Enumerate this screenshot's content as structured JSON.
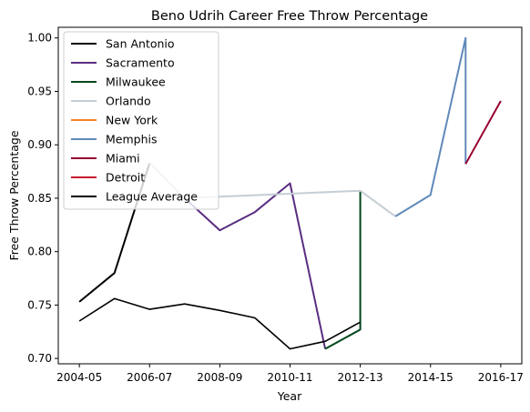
{
  "chart_data": {
    "type": "line",
    "title": "Beno Udrih Career Free Throw Percentage",
    "xlabel": "Year",
    "ylabel": "Free Throw Percentage",
    "x_ticks": [
      "2004-05",
      "2006-07",
      "2008-09",
      "2010-11",
      "2012-13",
      "2014-15",
      "2016-17"
    ],
    "y_ticks": [
      "0.70",
      "0.75",
      "0.80",
      "0.85",
      "0.90",
      "0.95",
      "1.00"
    ],
    "xlim": [
      "2004-05",
      "2016-17"
    ],
    "ylim": [
      0.695,
      1.01
    ],
    "legend_position": "top-left",
    "series": [
      {
        "name": "San Antonio",
        "color": "#000000",
        "points": [
          [
            "2004-05",
            0.753
          ],
          [
            "2005-06",
            0.78
          ],
          [
            "2006-07",
            0.883
          ]
        ]
      },
      {
        "name": "Sacramento",
        "color": "#5a2d81",
        "points": [
          [
            "2007-08",
            0.85
          ],
          [
            "2008-09",
            0.82
          ],
          [
            "2009-10",
            0.837
          ],
          [
            "2010-11",
            0.864
          ],
          [
            "2011-12",
            0.709
          ]
        ]
      },
      {
        "name": "Milwaukee",
        "color": "#00471b",
        "points": [
          [
            "2011-12",
            0.709
          ],
          [
            "2012-13",
            0.727
          ],
          [
            "2012-13",
            0.857
          ]
        ]
      },
      {
        "name": "Orlando",
        "color": "#c4ced4",
        "points": [
          [
            "2006-07",
            0.883
          ],
          [
            "2007-08",
            0.85
          ],
          [
            "2012-13",
            0.857
          ],
          [
            "2013-14",
            0.833
          ]
        ]
      },
      {
        "name": "New York",
        "color": "#f58426",
        "points": []
      },
      {
        "name": "Memphis",
        "color": "#6189b9",
        "points": [
          [
            "2013-14",
            0.833
          ],
          [
            "2014-15",
            0.853
          ],
          [
            "2015-16",
            1.0
          ],
          [
            "2015-16",
            0.882
          ]
        ]
      },
      {
        "name": "Miami",
        "color": "#98002e",
        "points": [
          [
            "2015-16",
            0.882
          ],
          [
            "2016-17",
            0.941
          ]
        ]
      },
      {
        "name": "Detroit",
        "color": "#c8102e",
        "points": []
      },
      {
        "name": "League Average",
        "color": "#000000",
        "points": [
          [
            "2004-05",
            0.735
          ],
          [
            "2005-06",
            0.756
          ],
          [
            "2006-07",
            0.746
          ],
          [
            "2007-08",
            0.751
          ],
          [
            "2008-09",
            0.745
          ],
          [
            "2009-10",
            0.738
          ],
          [
            "2010-11",
            0.709
          ],
          [
            "2011-12",
            0.716
          ],
          [
            "2012-13",
            0.734
          ]
        ]
      }
    ]
  }
}
